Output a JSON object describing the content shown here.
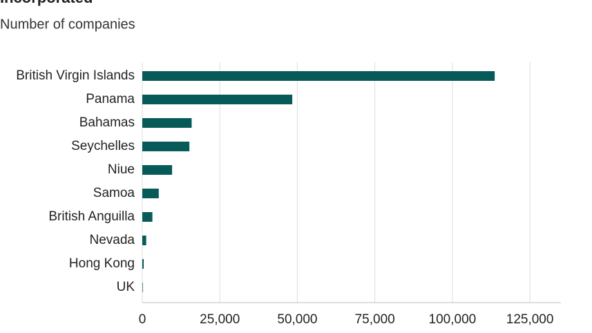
{
  "chart_data": {
    "type": "bar",
    "orientation": "horizontal",
    "title": "Incorporated",
    "subtitle": "Number of companies",
    "categories": [
      "British Virgin Islands",
      "Panama",
      "Bahamas",
      "Seychelles",
      "Niue",
      "Samoa",
      "British Anguilla",
      "Nevada",
      "Hong Kong",
      "UK"
    ],
    "values": [
      113648,
      48360,
      15915,
      15182,
      9611,
      5307,
      3253,
      1260,
      452,
      148
    ],
    "color": "#065a57",
    "xlim": [
      0,
      135000
    ],
    "xticks": [
      0,
      {
        "value": 25000,
        "label": "25,000"
      },
      {
        "value": 50000,
        "label": "50,000"
      },
      {
        "value": 75000,
        "label": "75,000"
      },
      {
        "value": 100000,
        "label": "100,000"
      },
      {
        "value": 125000,
        "label": "125,000"
      }
    ],
    "grid": true
  }
}
